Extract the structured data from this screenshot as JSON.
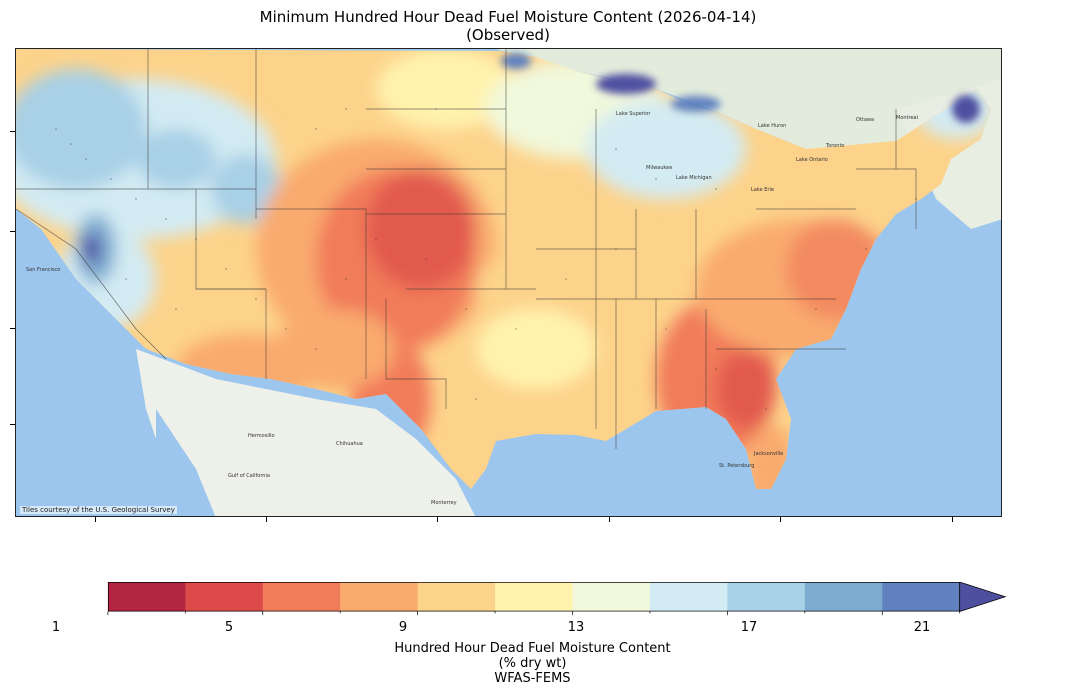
{
  "title": {
    "line1": "Minimum Hundred Hour Dead Fuel Moisture Content (2026-04-14)",
    "line2": "(Observed)"
  },
  "map": {
    "credit": "Tiles courtesy of the U.S. Geological Survey",
    "colors": {
      "ocean": "#9cc6ee",
      "land_mexico": "#eef0ea",
      "land_canada": "#e3ecdc",
      "lakes": "#a9cdee",
      "border": "#333333"
    },
    "place_labels": [
      "San Francisco",
      "Chihuahua",
      "Monterrey",
      "Jacksonville",
      "Milwaukee",
      "Lake Michigan",
      "Lake Superior",
      "Lake Huron",
      "Lake Ontario",
      "Lake Erie",
      "Ottawa",
      "Montreal",
      "Toronto",
      "Gulf of California",
      "Hermosillo",
      "St. Petersburg"
    ]
  },
  "colorbar": {
    "colors": [
      "#b2243f",
      "#dc4b49",
      "#f17c5a",
      "#f9aa6e",
      "#fdd38b",
      "#fff3ae",
      "#f1f8dc",
      "#d3ebf3",
      "#a8d0e6",
      "#7eabd1",
      "#6182bf",
      "#4f4fa0"
    ],
    "ticks": [
      "1",
      "5",
      "9",
      "13",
      "17",
      "21"
    ],
    "label_line1": "Hundred Hour Dead Fuel Moisture Content",
    "label_line2": "(% dry wt)",
    "label_line3": "WFAS-FEMS"
  }
}
